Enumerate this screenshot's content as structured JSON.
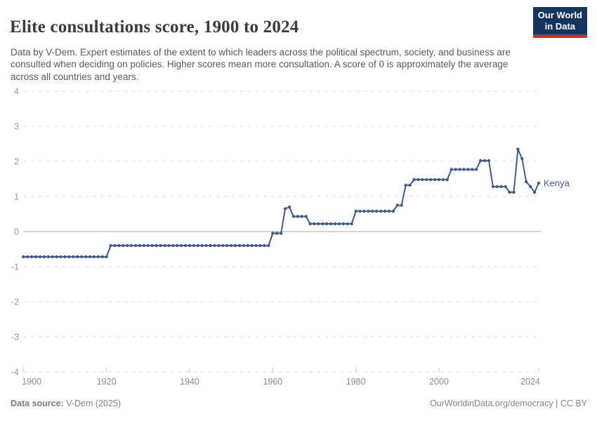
{
  "header": {
    "title": "Elite consultations score, 1900 to 2024",
    "subtitle": "Data by V-Dem. Expert estimates of the extent to which leaders across the political spectrum, society, and business are consulted when deciding on policies. Higher scores mean more consultation. A score of 0 is approximately the average across all countries and years.",
    "logo": {
      "line1": "Our World",
      "line2": "in Data",
      "bg_color": "#16355e",
      "accent_color": "#c0362c"
    }
  },
  "chart_data": {
    "type": "line",
    "title": "Elite consultations score, 1900 to 2024",
    "entity_label": "Kenya",
    "line_color": "#3d5c94",
    "grid": "horizontal dashed, solid zero line",
    "legend_position": "label at end of line",
    "xlim": [
      1900,
      2024
    ],
    "ylim": [
      -4,
      4
    ],
    "y_ticks": [
      4,
      3,
      2,
      1,
      0,
      -1,
      -2,
      -3,
      -4
    ],
    "x_ticks": [
      1900,
      1920,
      1940,
      1960,
      1980,
      2000,
      2024
    ],
    "axis_label_color": "#9a9a9a",
    "gridline_color": "#dcdcdc",
    "zero_line_color": "#a6a6a6",
    "points": [
      [
        1900,
        -0.72
      ],
      [
        1901,
        -0.72
      ],
      [
        1902,
        -0.72
      ],
      [
        1903,
        -0.72
      ],
      [
        1904,
        -0.72
      ],
      [
        1905,
        -0.72
      ],
      [
        1906,
        -0.72
      ],
      [
        1907,
        -0.72
      ],
      [
        1908,
        -0.72
      ],
      [
        1909,
        -0.72
      ],
      [
        1910,
        -0.72
      ],
      [
        1911,
        -0.72
      ],
      [
        1912,
        -0.72
      ],
      [
        1913,
        -0.72
      ],
      [
        1914,
        -0.72
      ],
      [
        1915,
        -0.72
      ],
      [
        1916,
        -0.72
      ],
      [
        1917,
        -0.72
      ],
      [
        1918,
        -0.72
      ],
      [
        1919,
        -0.72
      ],
      [
        1920,
        -0.72
      ],
      [
        1921,
        -0.4
      ],
      [
        1922,
        -0.4
      ],
      [
        1923,
        -0.4
      ],
      [
        1924,
        -0.4
      ],
      [
        1925,
        -0.4
      ],
      [
        1926,
        -0.4
      ],
      [
        1927,
        -0.4
      ],
      [
        1928,
        -0.4
      ],
      [
        1929,
        -0.4
      ],
      [
        1930,
        -0.4
      ],
      [
        1931,
        -0.4
      ],
      [
        1932,
        -0.4
      ],
      [
        1933,
        -0.4
      ],
      [
        1934,
        -0.4
      ],
      [
        1935,
        -0.4
      ],
      [
        1936,
        -0.4
      ],
      [
        1937,
        -0.4
      ],
      [
        1938,
        -0.4
      ],
      [
        1939,
        -0.4
      ],
      [
        1940,
        -0.4
      ],
      [
        1941,
        -0.4
      ],
      [
        1942,
        -0.4
      ],
      [
        1943,
        -0.4
      ],
      [
        1944,
        -0.4
      ],
      [
        1945,
        -0.4
      ],
      [
        1946,
        -0.4
      ],
      [
        1947,
        -0.4
      ],
      [
        1948,
        -0.4
      ],
      [
        1949,
        -0.4
      ],
      [
        1950,
        -0.4
      ],
      [
        1951,
        -0.4
      ],
      [
        1952,
        -0.4
      ],
      [
        1953,
        -0.4
      ],
      [
        1954,
        -0.4
      ],
      [
        1955,
        -0.4
      ],
      [
        1956,
        -0.4
      ],
      [
        1957,
        -0.4
      ],
      [
        1958,
        -0.4
      ],
      [
        1959,
        -0.4
      ],
      [
        1960,
        -0.05
      ],
      [
        1961,
        -0.05
      ],
      [
        1962,
        -0.05
      ],
      [
        1963,
        0.65
      ],
      [
        1964,
        0.7
      ],
      [
        1965,
        0.43
      ],
      [
        1966,
        0.43
      ],
      [
        1967,
        0.43
      ],
      [
        1968,
        0.43
      ],
      [
        1969,
        0.22
      ],
      [
        1970,
        0.22
      ],
      [
        1971,
        0.22
      ],
      [
        1972,
        0.22
      ],
      [
        1973,
        0.22
      ],
      [
        1974,
        0.22
      ],
      [
        1975,
        0.22
      ],
      [
        1976,
        0.22
      ],
      [
        1977,
        0.22
      ],
      [
        1978,
        0.22
      ],
      [
        1979,
        0.22
      ],
      [
        1980,
        0.58
      ],
      [
        1981,
        0.58
      ],
      [
        1982,
        0.58
      ],
      [
        1983,
        0.58
      ],
      [
        1984,
        0.58
      ],
      [
        1985,
        0.58
      ],
      [
        1986,
        0.58
      ],
      [
        1987,
        0.58
      ],
      [
        1988,
        0.58
      ],
      [
        1989,
        0.58
      ],
      [
        1990,
        0.75
      ],
      [
        1991,
        0.75
      ],
      [
        1992,
        1.32
      ],
      [
        1993,
        1.32
      ],
      [
        1994,
        1.48
      ],
      [
        1995,
        1.48
      ],
      [
        1996,
        1.48
      ],
      [
        1997,
        1.48
      ],
      [
        1998,
        1.48
      ],
      [
        1999,
        1.48
      ],
      [
        2000,
        1.48
      ],
      [
        2001,
        1.48
      ],
      [
        2002,
        1.48
      ],
      [
        2003,
        1.77
      ],
      [
        2004,
        1.77
      ],
      [
        2005,
        1.77
      ],
      [
        2006,
        1.77
      ],
      [
        2007,
        1.77
      ],
      [
        2008,
        1.77
      ],
      [
        2009,
        1.77
      ],
      [
        2010,
        2.02
      ],
      [
        2011,
        2.02
      ],
      [
        2012,
        2.02
      ],
      [
        2013,
        1.28
      ],
      [
        2014,
        1.28
      ],
      [
        2015,
        1.28
      ],
      [
        2016,
        1.28
      ],
      [
        2017,
        1.12
      ],
      [
        2018,
        1.12
      ],
      [
        2019,
        2.35
      ],
      [
        2020,
        2.08
      ],
      [
        2021,
        1.42
      ],
      [
        2022,
        1.28
      ],
      [
        2023,
        1.12
      ],
      [
        2024,
        1.38
      ]
    ]
  },
  "footer": {
    "source_label": "Data source:",
    "source_value": " V-Dem (2025)",
    "credit": "OurWorldinData.org/democracy | CC BY"
  }
}
